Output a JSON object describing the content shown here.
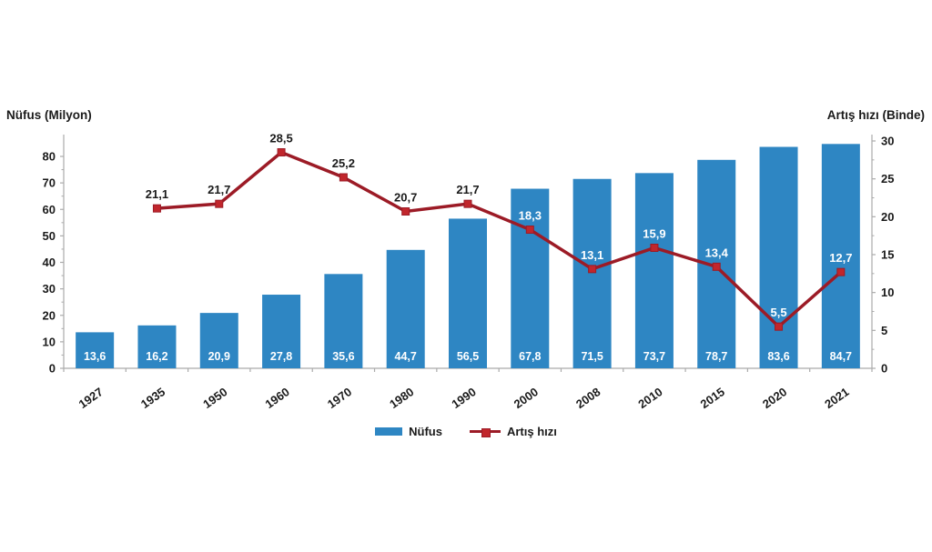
{
  "page": {
    "background": "#ffffff"
  },
  "chart_data": {
    "type": "combo-bar-line",
    "categories": [
      "1927",
      "1935",
      "1950",
      "1960",
      "1970",
      "1980",
      "1990",
      "2000",
      "2008",
      "2010",
      "2015",
      "2020",
      "2021"
    ],
    "series": [
      {
        "name": "Nüfus",
        "type": "bar",
        "axis": "left",
        "color": "#2E86C3",
        "values": [
          13.6,
          16.2,
          20.9,
          27.8,
          35.6,
          44.7,
          56.5,
          67.8,
          71.5,
          73.7,
          78.7,
          83.6,
          84.7
        ],
        "labels": [
          "13,6",
          "16,2",
          "20,9",
          "27,8",
          "35,6",
          "44,7",
          "56,5",
          "67,8",
          "71,5",
          "73,7",
          "78,7",
          "83,6",
          "84,7"
        ],
        "label_color": "#FFFFFF"
      },
      {
        "name": "Artış hızı",
        "type": "line",
        "axis": "right",
        "color": "#9C1B26",
        "marker_color": "#C1262C",
        "values": [
          null,
          21.1,
          21.7,
          28.5,
          25.2,
          20.7,
          21.7,
          18.3,
          13.1,
          15.9,
          13.4,
          5.5,
          12.7
        ],
        "labels": [
          "",
          "21,1",
          "21,7",
          "28,5",
          "25,2",
          "20,7",
          "21,7",
          "18,3",
          "13,1",
          "15,9",
          "13,4",
          "5,5",
          "12,7"
        ],
        "label_color_outside_bar": "#1A1A1A",
        "label_color_inside_bar": "#FFFFFF"
      }
    ],
    "left_axis": {
      "title": "Nüfus (Milyon)",
      "min": 0,
      "max": 80,
      "step": 10,
      "ticks": [
        "0",
        "10",
        "20",
        "30",
        "40",
        "50",
        "60",
        "70",
        "80"
      ]
    },
    "right_axis": {
      "title": "Artış hızı (Binde)",
      "min": 0,
      "max": 30,
      "step": 5,
      "ticks": [
        "0",
        "5",
        "10",
        "15",
        "20",
        "25",
        "30"
      ]
    },
    "legend_position": "bottom",
    "grid": false,
    "axis_color": "#ABABAB",
    "tick_text_color": "#1A1A1A"
  }
}
